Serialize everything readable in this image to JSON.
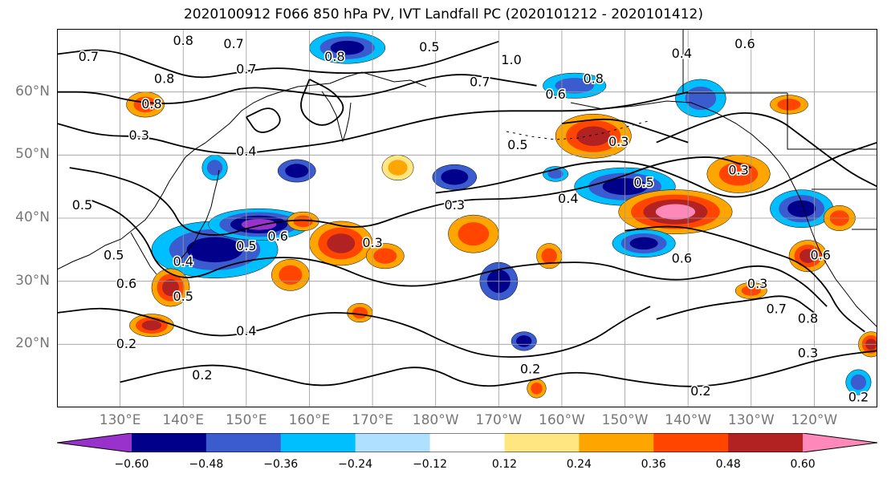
{
  "title": "2020100912 F066 850 hPa PV, IVT Landfall PC (2020101212 - 2020101412)",
  "y_ticks": [
    {
      "label": "60°N",
      "lat": 60
    },
    {
      "label": "50°N",
      "lat": 50
    },
    {
      "label": "40°N",
      "lat": 40
    },
    {
      "label": "30°N",
      "lat": 30
    },
    {
      "label": "20°N",
      "lat": 20
    }
  ],
  "x_ticks": [
    {
      "label": "130°E",
      "lon": 130
    },
    {
      "label": "140°E",
      "lon": 140
    },
    {
      "label": "150°E",
      "lon": 150
    },
    {
      "label": "160°E",
      "lon": 160
    },
    {
      "label": "170°E",
      "lon": 170
    },
    {
      "label": "180°W",
      "lon": 180
    },
    {
      "label": "170°W",
      "lon": 190
    },
    {
      "label": "160°W",
      "lon": 200
    },
    {
      "label": "150°W",
      "lon": 210
    },
    {
      "label": "140°W",
      "lon": 220
    },
    {
      "label": "130°W",
      "lon": 230
    },
    {
      "label": "120°W",
      "lon": 240
    }
  ],
  "map_extent": {
    "lon": [
      120,
      250
    ],
    "lat": [
      10,
      70
    ]
  },
  "colorbar": {
    "colors": [
      "#9932cc",
      "#00008b",
      "#3a5ccf",
      "#00bfff",
      "#b0e0ff",
      "#ffffff",
      "#ffe680",
      "#ffa500",
      "#ff4500",
      "#b22222",
      "#ff88bb"
    ],
    "tick_labels": [
      "−0.60",
      "−0.48",
      "−0.36",
      "−0.24",
      "−0.12",
      "0.12",
      "0.24",
      "0.36",
      "0.48",
      "0.60"
    ]
  },
  "contour_labels": [
    {
      "text": "0.7",
      "lon": 125,
      "lat": 65.5
    },
    {
      "text": "0.8",
      "lon": 140,
      "lat": 68
    },
    {
      "text": "0.7",
      "lon": 148,
      "lat": 67.5
    },
    {
      "text": "0.7",
      "lon": 150,
      "lat": 63.5
    },
    {
      "text": "0.8",
      "lon": 164,
      "lat": 65.5
    },
    {
      "text": "0.8",
      "lon": 137,
      "lat": 62
    },
    {
      "text": "0.8",
      "lon": 135,
      "lat": 58
    },
    {
      "text": "0.3",
      "lon": 133,
      "lat": 53
    },
    {
      "text": "0.4",
      "lon": 150,
      "lat": 50.5
    },
    {
      "text": "0.5",
      "lon": 124,
      "lat": 42
    },
    {
      "text": "0.4",
      "lon": 140,
      "lat": 33
    },
    {
      "text": "0.5",
      "lon": 129,
      "lat": 34
    },
    {
      "text": "0.6",
      "lon": 131,
      "lat": 29.5
    },
    {
      "text": "0.5",
      "lon": 140,
      "lat": 27.5
    },
    {
      "text": "0.5",
      "lon": 150,
      "lat": 35.5
    },
    {
      "text": "0.6",
      "lon": 155,
      "lat": 37
    },
    {
      "text": "0.3",
      "lon": 170,
      "lat": 36
    },
    {
      "text": "0.4",
      "lon": 150,
      "lat": 22
    },
    {
      "text": "0.2",
      "lon": 131,
      "lat": 20
    },
    {
      "text": "0.2",
      "lon": 143,
      "lat": 15
    },
    {
      "text": "0.3",
      "lon": 183,
      "lat": 42
    },
    {
      "text": "0.5",
      "lon": 179,
      "lat": 67
    },
    {
      "text": "1.0",
      "lon": 192,
      "lat": 65
    },
    {
      "text": "0.7",
      "lon": 187,
      "lat": 61.5
    },
    {
      "text": "0.6",
      "lon": 199,
      "lat": 59.5
    },
    {
      "text": "0.8",
      "lon": 205,
      "lat": 62
    },
    {
      "text": "0.5",
      "lon": 193,
      "lat": 51.5
    },
    {
      "text": "0.3",
      "lon": 209,
      "lat": 52
    },
    {
      "text": "0.5",
      "lon": 213,
      "lat": 45.5
    },
    {
      "text": "0.4",
      "lon": 201,
      "lat": 43
    },
    {
      "text": "0.6",
      "lon": 219,
      "lat": 33.5
    },
    {
      "text": "0.3",
      "lon": 228,
      "lat": 47.5
    },
    {
      "text": "0.4",
      "lon": 219,
      "lat": 66
    },
    {
      "text": "0.6",
      "lon": 229,
      "lat": 67.5
    },
    {
      "text": "0.2",
      "lon": 195,
      "lat": 16
    },
    {
      "text": "0.2",
      "lon": 222,
      "lat": 12.5
    },
    {
      "text": "0.3",
      "lon": 239,
      "lat": 18.5
    },
    {
      "text": "0.2",
      "lon": 247,
      "lat": 11.5
    },
    {
      "text": "0.6",
      "lon": 241,
      "lat": 34
    },
    {
      "text": "0.3",
      "lon": 231,
      "lat": 29.5
    },
    {
      "text": "0.7",
      "lon": 234,
      "lat": 25.5
    },
    {
      "text": "0.8",
      "lon": 239,
      "lat": 24
    }
  ],
  "fill_blobs": [
    {
      "lon": 145,
      "lat": 35,
      "rx": 10,
      "ry": 4.5,
      "levels": [
        3,
        2,
        1
      ]
    },
    {
      "lon": 152,
      "lat": 39,
      "rx": 8,
      "ry": 2.5,
      "levels": [
        3,
        2,
        1,
        0
      ]
    },
    {
      "lon": 138,
      "lat": 29,
      "rx": 3,
      "ry": 3,
      "levels": [
        7,
        8,
        9
      ]
    },
    {
      "lon": 135,
      "lat": 23,
      "rx": 3.5,
      "ry": 1.8,
      "levels": [
        7,
        8,
        9
      ]
    },
    {
      "lon": 134,
      "lat": 58,
      "rx": 3,
      "ry": 2,
      "levels": [
        7,
        8
      ]
    },
    {
      "lon": 165,
      "lat": 36,
      "rx": 5,
      "ry": 3.5,
      "levels": [
        7,
        8,
        9
      ]
    },
    {
      "lon": 159,
      "lat": 39.5,
      "rx": 2.5,
      "ry": 1.5,
      "levels": [
        7,
        8
      ]
    },
    {
      "lon": 157,
      "lat": 31,
      "rx": 3,
      "ry": 2.5,
      "levels": [
        7,
        8
      ]
    },
    {
      "lon": 172,
      "lat": 34,
      "rx": 3,
      "ry": 2,
      "levels": [
        7,
        8
      ]
    },
    {
      "lon": 168,
      "lat": 25,
      "rx": 2,
      "ry": 1.5,
      "levels": [
        7,
        8
      ]
    },
    {
      "lon": 174,
      "lat": 48,
      "rx": 2.5,
      "ry": 2,
      "levels": [
        6,
        7
      ]
    },
    {
      "lon": 186,
      "lat": 37.5,
      "rx": 4,
      "ry": 3,
      "levels": [
        7,
        8
      ]
    },
    {
      "lon": 183,
      "lat": 46.5,
      "rx": 3.5,
      "ry": 2,
      "levels": [
        2,
        1
      ]
    },
    {
      "lon": 199,
      "lat": 47,
      "rx": 2,
      "ry": 1.2,
      "levels": [
        3,
        2
      ]
    },
    {
      "lon": 205,
      "lat": 53,
      "rx": 6,
      "ry": 3.5,
      "levels": [
        7,
        8,
        9
      ]
    },
    {
      "lon": 210,
      "lat": 45,
      "rx": 8,
      "ry": 3,
      "levels": [
        3,
        2,
        1
      ]
    },
    {
      "lon": 218,
      "lat": 41,
      "rx": 9,
      "ry": 3.5,
      "levels": [
        7,
        8,
        9,
        10
      ]
    },
    {
      "lon": 213,
      "lat": 36,
      "rx": 5,
      "ry": 2.2,
      "levels": [
        3,
        2,
        1
      ]
    },
    {
      "lon": 228,
      "lat": 47,
      "rx": 5,
      "ry": 3,
      "levels": [
        7,
        8
      ]
    },
    {
      "lon": 238,
      "lat": 41.5,
      "rx": 5,
      "ry": 3,
      "levels": [
        3,
        2,
        1
      ]
    },
    {
      "lon": 236,
      "lat": 58,
      "rx": 3,
      "ry": 1.5,
      "levels": [
        7,
        8
      ]
    },
    {
      "lon": 222,
      "lat": 59,
      "rx": 4,
      "ry": 3,
      "levels": [
        3,
        2
      ]
    },
    {
      "lon": 202,
      "lat": 61,
      "rx": 5,
      "ry": 2,
      "levels": [
        3,
        2
      ]
    },
    {
      "lon": 190,
      "lat": 30,
      "rx": 3,
      "ry": 3,
      "levels": [
        2,
        1
      ]
    },
    {
      "lon": 198,
      "lat": 34,
      "rx": 2,
      "ry": 2,
      "levels": [
        7,
        8
      ]
    },
    {
      "lon": 239,
      "lat": 34,
      "rx": 3,
      "ry": 2.5,
      "levels": [
        7,
        8,
        9
      ]
    },
    {
      "lon": 230,
      "lat": 28.5,
      "rx": 2.5,
      "ry": 1.3,
      "levels": [
        7,
        8
      ]
    },
    {
      "lon": 196,
      "lat": 13,
      "rx": 1.5,
      "ry": 1.5,
      "levels": [
        7,
        8
      ]
    },
    {
      "lon": 194,
      "lat": 20.5,
      "rx": 2,
      "ry": 1.5,
      "levels": [
        2,
        1
      ]
    },
    {
      "lon": 247,
      "lat": 14,
      "rx": 2,
      "ry": 2,
      "levels": [
        3,
        2
      ]
    },
    {
      "lon": 166,
      "lat": 67,
      "rx": 6,
      "ry": 2.5,
      "levels": [
        3,
        2,
        1
      ]
    },
    {
      "lon": 145,
      "lat": 48,
      "rx": 2,
      "ry": 2,
      "levels": [
        3,
        2
      ]
    },
    {
      "lon": 158,
      "lat": 47.5,
      "rx": 3,
      "ry": 1.8,
      "levels": [
        2,
        1
      ]
    },
    {
      "lon": 244,
      "lat": 40,
      "rx": 2.5,
      "ry": 2,
      "levels": [
        7,
        8
      ]
    },
    {
      "lon": 249,
      "lat": 20,
      "rx": 2,
      "ry": 2,
      "levels": [
        7,
        8,
        9
      ]
    }
  ],
  "contour_lines": [
    [
      [
        120,
        66
      ],
      [
        128,
        67
      ],
      [
        136,
        64
      ],
      [
        142,
        62
      ],
      [
        148,
        63
      ],
      [
        155,
        64
      ],
      [
        162,
        63
      ],
      [
        170,
        63
      ],
      [
        178,
        64
      ],
      [
        184,
        66
      ],
      [
        190,
        68
      ]
    ],
    [
      [
        120,
        60
      ],
      [
        126,
        60
      ],
      [
        132,
        58.5
      ],
      [
        138,
        58
      ],
      [
        144,
        59
      ],
      [
        150,
        61
      ],
      [
        158,
        60
      ],
      [
        166,
        59
      ],
      [
        172,
        60
      ],
      [
        178,
        62
      ],
      [
        184,
        63
      ],
      [
        190,
        62
      ],
      [
        196,
        61
      ]
    ],
    [
      [
        120,
        55
      ],
      [
        127,
        53
      ],
      [
        134,
        53
      ],
      [
        141,
        51
      ],
      [
        148,
        50
      ],
      [
        156,
        51
      ],
      [
        164,
        52
      ],
      [
        172,
        54
      ],
      [
        180,
        56
      ],
      [
        188,
        57
      ],
      [
        196,
        57
      ],
      [
        204,
        57
      ],
      [
        212,
        58
      ],
      [
        220,
        60
      ]
    ],
    [
      [
        122,
        48
      ],
      [
        128,
        47
      ],
      [
        134,
        45
      ],
      [
        138,
        42
      ],
      [
        140,
        38
      ],
      [
        146,
        37
      ],
      [
        152,
        39
      ],
      [
        160,
        40
      ],
      [
        168,
        38
      ],
      [
        176,
        41
      ],
      [
        184,
        43
      ],
      [
        192,
        43
      ],
      [
        200,
        44
      ],
      [
        208,
        46
      ],
      [
        216,
        49
      ],
      [
        224,
        50
      ],
      [
        230,
        48
      ]
    ],
    [
      [
        125,
        43
      ],
      [
        130,
        41
      ],
      [
        134,
        37
      ],
      [
        136,
        32
      ],
      [
        141,
        30
      ],
      [
        148,
        33
      ],
      [
        156,
        34
      ],
      [
        163,
        33
      ],
      [
        170,
        30
      ],
      [
        176,
        29
      ],
      [
        183,
        30
      ],
      [
        190,
        32
      ],
      [
        198,
        33
      ],
      [
        206,
        33
      ],
      [
        212,
        31
      ],
      [
        218,
        30
      ],
      [
        224,
        31
      ],
      [
        232,
        33
      ],
      [
        238,
        30
      ],
      [
        242,
        26
      ]
    ],
    [
      [
        120,
        25
      ],
      [
        128,
        26
      ],
      [
        136,
        24
      ],
      [
        144,
        21
      ],
      [
        152,
        22
      ],
      [
        160,
        25
      ],
      [
        168,
        25
      ],
      [
        176,
        23
      ],
      [
        182,
        20
      ],
      [
        188,
        18
      ],
      [
        196,
        18
      ],
      [
        204,
        20
      ],
      [
        210,
        24
      ],
      [
        214,
        26
      ]
    ],
    [
      [
        130,
        14
      ],
      [
        138,
        16
      ],
      [
        146,
        17
      ],
      [
        154,
        15
      ],
      [
        162,
        13
      ],
      [
        170,
        15
      ],
      [
        178,
        17
      ],
      [
        186,
        13
      ],
      [
        194,
        14
      ],
      [
        202,
        16
      ],
      [
        212,
        14
      ],
      [
        222,
        13
      ],
      [
        232,
        15
      ],
      [
        242,
        18
      ],
      [
        250,
        19
      ]
    ],
    [
      [
        180,
        44
      ],
      [
        188,
        45
      ],
      [
        196,
        47
      ],
      [
        204,
        49
      ],
      [
        212,
        49
      ],
      [
        220,
        46
      ],
      [
        226,
        43
      ],
      [
        232,
        44
      ],
      [
        238,
        47
      ],
      [
        244,
        50
      ],
      [
        250,
        52
      ]
    ],
    [
      [
        210,
        38
      ],
      [
        218,
        39
      ],
      [
        226,
        37
      ],
      [
        232,
        35
      ],
      [
        238,
        33
      ],
      [
        242,
        29
      ],
      [
        244,
        25
      ],
      [
        248,
        22
      ]
    ],
    [
      [
        215,
        24
      ],
      [
        222,
        26
      ],
      [
        230,
        27
      ],
      [
        236,
        28
      ],
      [
        240,
        25
      ]
    ],
    [
      [
        215,
        52
      ],
      [
        222,
        55
      ],
      [
        228,
        57
      ],
      [
        234,
        56
      ],
      [
        238,
        53
      ],
      [
        242,
        50
      ],
      [
        246,
        47
      ],
      [
        250,
        45
      ]
    ],
    [
      [
        200,
        55
      ],
      [
        208,
        56
      ],
      [
        214,
        54
      ],
      [
        220,
        52
      ]
    ],
    [
      [
        150,
        56
      ],
      [
        154,
        58
      ],
      [
        156,
        55
      ],
      [
        152,
        53
      ],
      [
        150,
        56
      ]
    ],
    [
      [
        160,
        62
      ],
      [
        164,
        60
      ],
      [
        166,
        57
      ],
      [
        162,
        54
      ],
      [
        158,
        57
      ],
      [
        160,
        62
      ]
    ]
  ]
}
